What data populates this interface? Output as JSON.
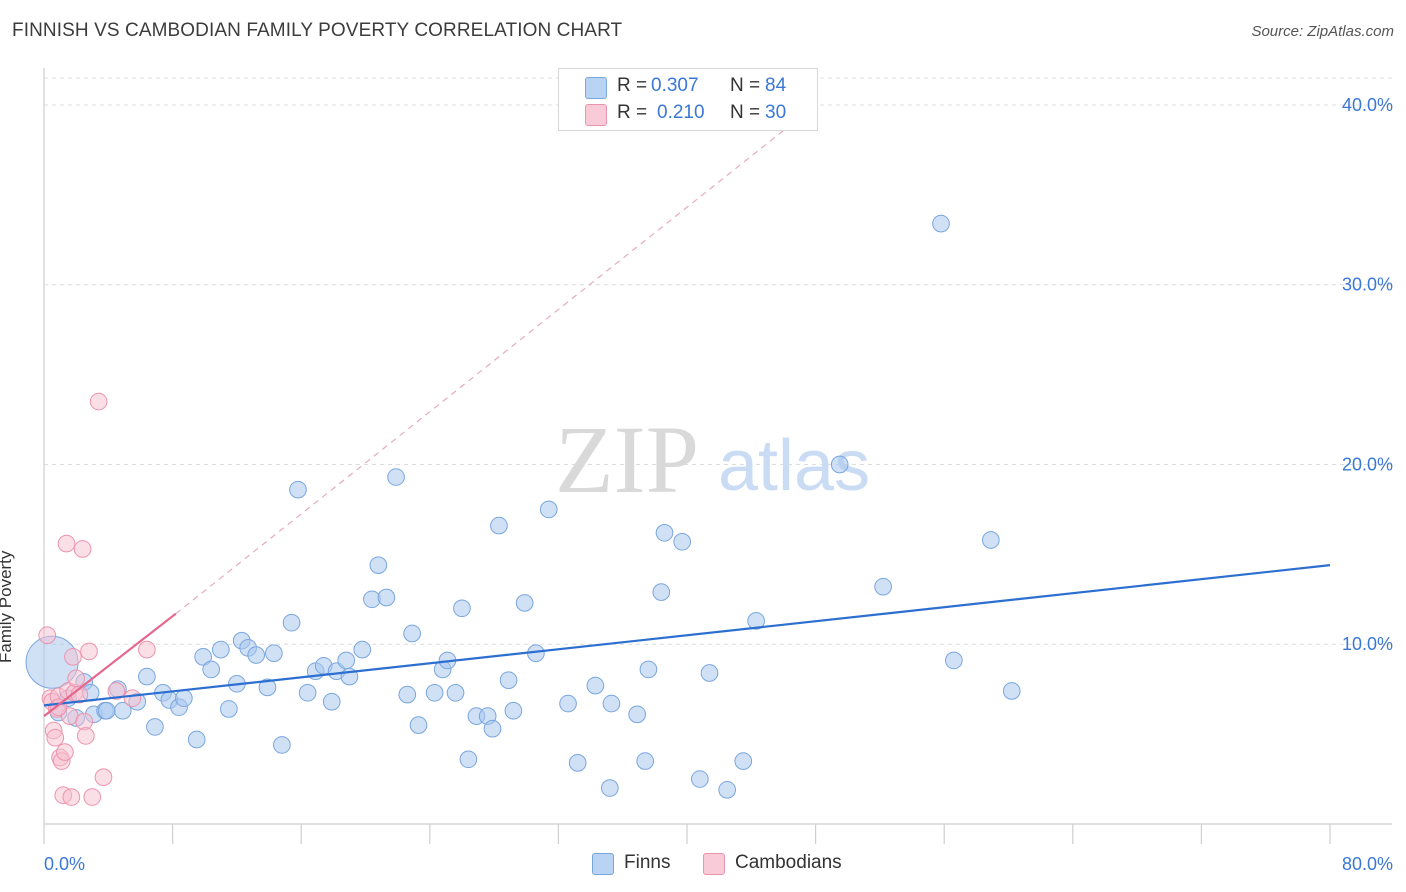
{
  "title": "FINNISH VS CAMBODIAN FAMILY POVERTY CORRELATION CHART",
  "source": "Source: ZipAtlas.com",
  "watermark": {
    "zip": "ZIP",
    "atlas": "atlas"
  },
  "legend": {
    "finns": {
      "r_label": "R =",
      "r_value": "0.307",
      "n_label": "N =",
      "n_value": "84",
      "name": "Finns"
    },
    "cambodians": {
      "r_label": "R =",
      "r_value": "0.210",
      "n_label": "N =",
      "n_value": "30",
      "name": "Cambodians"
    }
  },
  "chart_data": {
    "type": "scatter",
    "title": "FINNISH VS CAMBODIAN FAMILY POVERTY CORRELATION CHART",
    "xlabel": "",
    "ylabel": "Family Poverty",
    "xlim": [
      0,
      80
    ],
    "ylim": [
      0,
      41.5
    ],
    "x_tick_labels": [
      "0.0%",
      "80.0%"
    ],
    "y_ticks": [
      10,
      20,
      30,
      40
    ],
    "y_tick_labels": [
      "10.0%",
      "20.0%",
      "30.0%",
      "40.0%"
    ],
    "grid": true,
    "colors": {
      "finns": "#a9c8ef",
      "finns_edge": "#7aa6de",
      "finns_line": "#2c6fd1",
      "cambodians": "#f7c0d0",
      "cambodians_edge": "#eb94ae",
      "cambodians_line": "#e5678e"
    },
    "series": [
      {
        "name": "Finns",
        "trend": {
          "x": [
            0,
            80
          ],
          "y": [
            6.6,
            14.4
          ]
        },
        "points": [
          [
            0.5,
            9.0,
            26
          ],
          [
            0.9,
            6.2,
            10
          ],
          [
            1.5,
            7.0,
            10
          ],
          [
            2.0,
            5.9,
            10
          ],
          [
            2.5,
            7.9,
            10
          ],
          [
            2.9,
            7.3,
            10
          ],
          [
            3.1,
            6.1,
            10
          ],
          [
            3.8,
            6.3,
            10
          ],
          [
            4.9,
            6.3,
            10
          ],
          [
            4.6,
            7.5,
            10
          ],
          [
            5.8,
            6.8,
            10
          ],
          [
            6.4,
            8.2,
            10
          ],
          [
            6.9,
            5.4,
            10
          ],
          [
            7.4,
            7.3,
            10
          ],
          [
            7.8,
            6.9,
            10
          ],
          [
            8.4,
            6.5,
            10
          ],
          [
            8.7,
            7.0,
            10
          ],
          [
            9.5,
            4.7,
            10
          ],
          [
            9.9,
            9.3,
            10
          ],
          [
            10.4,
            8.6,
            10
          ],
          [
            11.0,
            9.7,
            10
          ],
          [
            11.5,
            6.4,
            10
          ],
          [
            12.0,
            7.8,
            10
          ],
          [
            12.3,
            10.2,
            10
          ],
          [
            12.7,
            9.8,
            10
          ],
          [
            13.2,
            9.4,
            10
          ],
          [
            13.9,
            7.6,
            10
          ],
          [
            14.3,
            9.5,
            10
          ],
          [
            14.8,
            4.4,
            10
          ],
          [
            15.4,
            11.2,
            10
          ],
          [
            15.8,
            18.6,
            10
          ],
          [
            16.4,
            7.3,
            10
          ],
          [
            16.9,
            8.5,
            10
          ],
          [
            17.4,
            8.8,
            10
          ],
          [
            17.9,
            6.8,
            10
          ],
          [
            18.2,
            8.5,
            10
          ],
          [
            18.8,
            9.1,
            10
          ],
          [
            19.0,
            8.2,
            10
          ],
          [
            19.8,
            9.7,
            10
          ],
          [
            20.4,
            12.5,
            10
          ],
          [
            20.8,
            14.4,
            10
          ],
          [
            21.3,
            12.6,
            10
          ],
          [
            21.9,
            19.3,
            10
          ],
          [
            22.6,
            7.2,
            10
          ],
          [
            22.9,
            10.6,
            10
          ],
          [
            23.3,
            5.5,
            10
          ],
          [
            24.3,
            7.3,
            10
          ],
          [
            24.8,
            8.6,
            10
          ],
          [
            25.1,
            9.1,
            10
          ],
          [
            25.6,
            7.3,
            10
          ],
          [
            26.0,
            12.0,
            10
          ],
          [
            26.4,
            3.6,
            10
          ],
          [
            26.9,
            6.0,
            10
          ],
          [
            27.6,
            6.0,
            10
          ],
          [
            27.9,
            5.3,
            10
          ],
          [
            28.3,
            16.6,
            10
          ],
          [
            28.9,
            8.0,
            10
          ],
          [
            29.2,
            6.3,
            10
          ],
          [
            29.9,
            12.3,
            10
          ],
          [
            30.6,
            9.5,
            10
          ],
          [
            31.4,
            17.5,
            10
          ],
          [
            32.6,
            6.7,
            10
          ],
          [
            33.2,
            3.4,
            10
          ],
          [
            34.3,
            7.7,
            10
          ],
          [
            35.2,
            2.0,
            10
          ],
          [
            35.3,
            6.7,
            10
          ],
          [
            36.9,
            6.1,
            10
          ],
          [
            37.4,
            3.5,
            10
          ],
          [
            37.6,
            8.6,
            10
          ],
          [
            38.4,
            12.9,
            10
          ],
          [
            38.6,
            16.2,
            10
          ],
          [
            39.7,
            15.7,
            10
          ],
          [
            40.8,
            2.5,
            10
          ],
          [
            41.4,
            8.4,
            10
          ],
          [
            42.5,
            1.9,
            10
          ],
          [
            43.5,
            3.5,
            10
          ],
          [
            44.3,
            11.3,
            10
          ],
          [
            49.5,
            20.0,
            10
          ],
          [
            52.2,
            13.2,
            10
          ],
          [
            55.8,
            33.4,
            10
          ],
          [
            56.6,
            9.1,
            10
          ],
          [
            58.9,
            15.8,
            10
          ],
          [
            60.2,
            7.4,
            10
          ],
          [
            3.9,
            6.3,
            10
          ]
        ]
      },
      {
        "name": "Cambodians",
        "trend": {
          "x": [
            0,
            8.2
          ],
          "y": [
            6.0,
            11.7
          ]
        },
        "trend_extended": {
          "x": [
            8.2,
            48
          ],
          "y": [
            11.7,
            40.0
          ]
        },
        "points": [
          [
            0.2,
            10.5,
            10
          ],
          [
            0.4,
            7.0,
            10
          ],
          [
            0.5,
            6.8,
            10
          ],
          [
            0.6,
            5.2,
            10
          ],
          [
            0.7,
            4.8,
            10
          ],
          [
            0.8,
            6.4,
            10
          ],
          [
            0.9,
            7.1,
            10
          ],
          [
            1.0,
            3.7,
            10
          ],
          [
            1.1,
            3.5,
            10
          ],
          [
            1.2,
            1.6,
            10
          ],
          [
            1.3,
            4.0,
            10
          ],
          [
            1.4,
            15.6,
            10
          ],
          [
            1.5,
            7.4,
            10
          ],
          [
            1.6,
            6.0,
            10
          ],
          [
            1.7,
            1.5,
            10
          ],
          [
            1.8,
            9.3,
            10
          ],
          [
            1.9,
            7.3,
            10
          ],
          [
            2.0,
            8.1,
            10
          ],
          [
            2.2,
            7.2,
            10
          ],
          [
            2.4,
            15.3,
            10
          ],
          [
            2.5,
            5.7,
            10
          ],
          [
            2.6,
            4.9,
            10
          ],
          [
            2.8,
            9.6,
            10
          ],
          [
            3.0,
            1.5,
            10
          ],
          [
            3.4,
            23.5,
            10
          ],
          [
            3.7,
            2.6,
            10
          ],
          [
            4.5,
            7.4,
            10
          ],
          [
            5.5,
            7.0,
            10
          ],
          [
            6.4,
            9.7,
            10
          ],
          [
            0.9,
            6.5,
            10
          ]
        ]
      }
    ]
  }
}
